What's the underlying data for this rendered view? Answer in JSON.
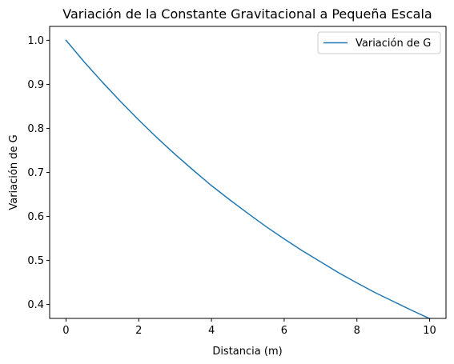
{
  "chart_data": {
    "type": "line",
    "title": "Variación de la Constante Gravitacional a Pequeña Escala",
    "xlabel": "Distancia (m)",
    "ylabel": "Variación de G",
    "xlim": [
      -0.45,
      10.45
    ],
    "ylim": [
      0.3684,
      1.0316
    ],
    "x_ticks": [
      0,
      2,
      4,
      6,
      8,
      10
    ],
    "x_tick_labels": [
      "0",
      "2",
      "4",
      "6",
      "8",
      "10"
    ],
    "y_ticks": [
      0.4,
      0.5,
      0.6,
      0.7,
      0.8,
      0.9,
      1.0
    ],
    "y_tick_labels": [
      "0.4",
      "0.5",
      "0.6",
      "0.7",
      "0.8",
      "0.9",
      "1.0"
    ],
    "grid": false,
    "legend_position": "upper right",
    "series": [
      {
        "name": "Variación de G",
        "color": "#1f77b4",
        "x": [
          0,
          0.5,
          1,
          1.5,
          2,
          2.5,
          3,
          3.5,
          4,
          4.5,
          5,
          5.5,
          6,
          6.5,
          7,
          7.5,
          8,
          8.5,
          9,
          9.5,
          10
        ],
        "y": [
          1.0,
          0.951,
          0.905,
          0.861,
          0.819,
          0.779,
          0.741,
          0.705,
          0.67,
          0.638,
          0.607,
          0.577,
          0.549,
          0.522,
          0.497,
          0.472,
          0.449,
          0.427,
          0.407,
          0.387,
          0.368
        ]
      }
    ]
  }
}
